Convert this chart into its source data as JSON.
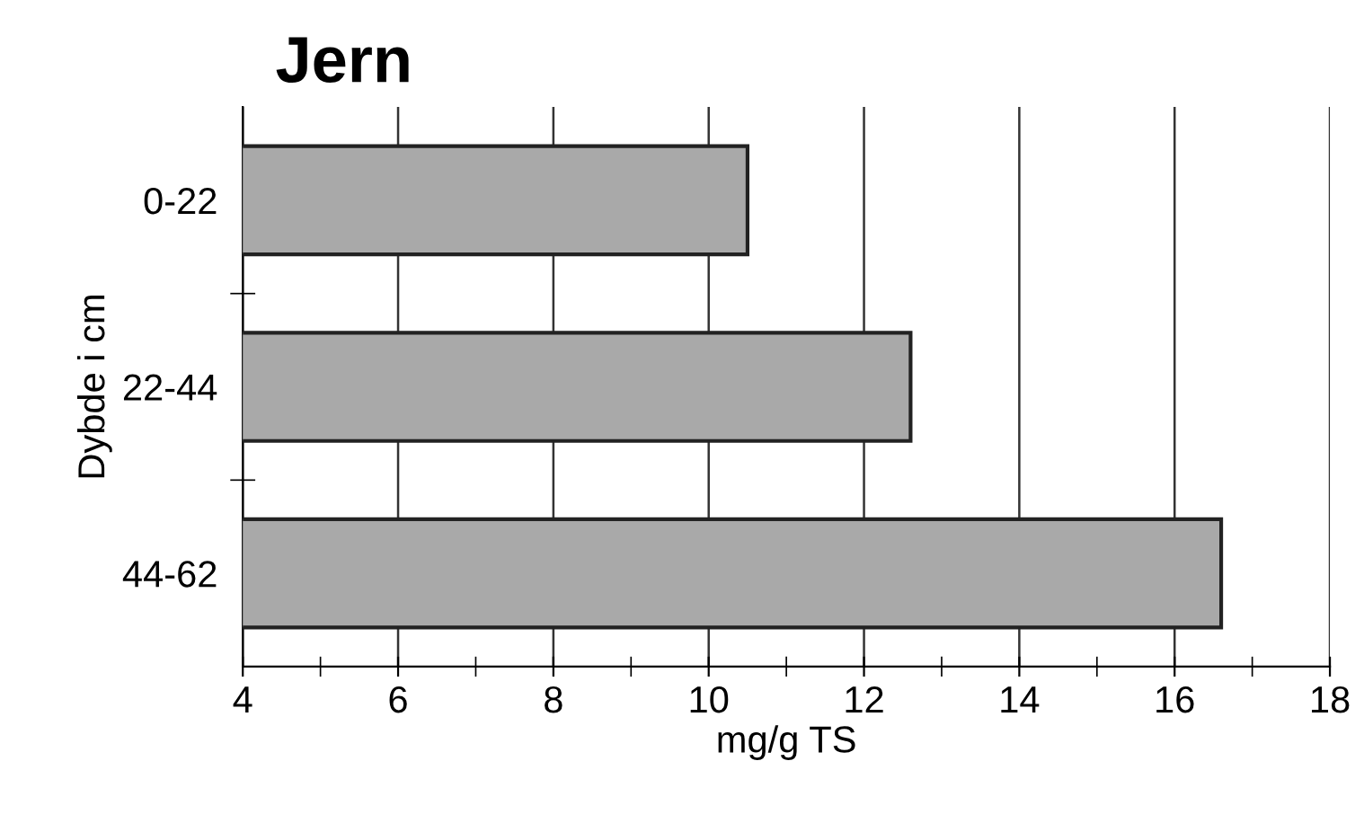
{
  "chart_data": {
    "type": "bar",
    "orientation": "horizontal",
    "title": "Jern",
    "xlabel": "mg/g TS",
    "ylabel": "Dybde i cm",
    "categories": [
      "0-22",
      "22-44",
      "44-62"
    ],
    "values": [
      10.5,
      12.6,
      16.6
    ],
    "color": "#a9a9a9",
    "xlim": [
      4,
      18
    ],
    "xticks": [
      4,
      6,
      8,
      10,
      12,
      14,
      16,
      18
    ],
    "grid": "x"
  }
}
